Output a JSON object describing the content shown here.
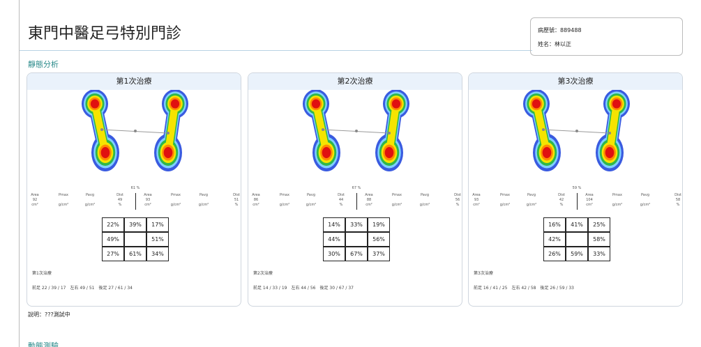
{
  "header": {
    "title": "東門中醫足弓特別門診",
    "record_no": "病歷號：889488",
    "name": "姓名：林以正"
  },
  "section": "靜態分析",
  "sessions": [
    {
      "title": "第1次治療",
      "left_stats": [
        {
          "label": "Area",
          "value": "92",
          "unit": "cm²"
        },
        {
          "label": "Pmax",
          "unit": "g/cm²"
        },
        {
          "label": "Pavg",
          "unit": "g/cm²"
        },
        {
          "label": "Dist",
          "value": "49",
          "unit": "%"
        }
      ],
      "center": "61 %",
      "right_stats": [
        {
          "label": "Area",
          "value": "93",
          "unit": "cm²"
        },
        {
          "label": "Pmax",
          "unit": "g/cm²"
        },
        {
          "label": "Pavg",
          "unit": "g/cm²"
        },
        {
          "label": "Dist",
          "value": "51",
          "unit": "%"
        }
      ],
      "grid": [
        [
          "22%",
          "39%",
          "17%"
        ],
        [
          "49%",
          null,
          "51%"
        ],
        [
          "27%",
          "61%",
          "34%"
        ]
      ],
      "caption": "第1次治療",
      "summary": "前足 22 / 39 / 17　左右 49 / 51　後足 27 / 61 / 34"
    },
    {
      "title": "第2次治療",
      "left_stats": [
        {
          "label": "Area",
          "value": "86",
          "unit": "cm²"
        },
        {
          "label": "Pmax",
          "unit": "g/cm²"
        },
        {
          "label": "Pavg",
          "unit": "g/cm²"
        },
        {
          "label": "Dist",
          "value": "44",
          "unit": "%"
        }
      ],
      "center": "67 %",
      "right_stats": [
        {
          "label": "Area",
          "value": "88",
          "unit": "cm²"
        },
        {
          "label": "Pmax",
          "unit": "g/cm²"
        },
        {
          "label": "Pavg",
          "unit": "g/cm²"
        },
        {
          "label": "Dist",
          "value": "56",
          "unit": "%"
        }
      ],
      "grid": [
        [
          "14%",
          "33%",
          "19%"
        ],
        [
          "44%",
          null,
          "56%"
        ],
        [
          "30%",
          "67%",
          "37%"
        ]
      ],
      "caption": "第2次治療",
      "summary": "前足 14 / 33 / 19　左右 44 / 56　後足 30 / 67 / 37"
    },
    {
      "title": "第3次治療",
      "left_stats": [
        {
          "label": "Area",
          "value": "93",
          "unit": "cm²"
        },
        {
          "label": "Pmax",
          "unit": "g/cm²"
        },
        {
          "label": "Pavg",
          "unit": "g/cm²"
        },
        {
          "label": "Dist",
          "value": "42",
          "unit": "%"
        }
      ],
      "center": "59 %",
      "right_stats": [
        {
          "label": "Area",
          "value": "104",
          "unit": "cm²"
        },
        {
          "label": "Pmax",
          "unit": "g/cm²"
        },
        {
          "label": "Pavg",
          "unit": "g/cm²"
        },
        {
          "label": "Dist",
          "value": "58",
          "unit": "%"
        }
      ],
      "grid": [
        [
          "16%",
          "41%",
          "25%"
        ],
        [
          "42%",
          null,
          "58%"
        ],
        [
          "26%",
          "59%",
          "33%"
        ]
      ],
      "caption": "第3次治療",
      "summary": "前足 16 / 41 / 25　左右 42 / 58　後足 26 / 59 / 33"
    }
  ],
  "note": "說明：???測試中",
  "next_section": "動態測驗"
}
